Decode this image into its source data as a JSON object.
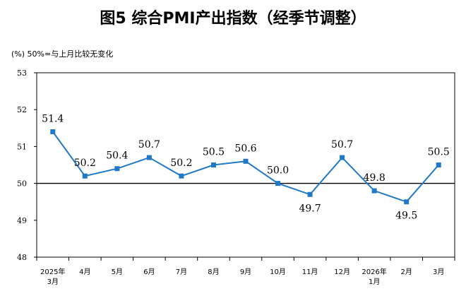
{
  "chart_data": {
    "type": "line",
    "title": "图5  综合PMI产出指数（经季节调整）",
    "unit_note": "(%)  50%=与上月比较无变化",
    "categories": [
      "2025年3月",
      "4月",
      "5月",
      "6月",
      "7月",
      "8月",
      "9月",
      "10月",
      "11月",
      "12月",
      "2026年1月",
      "2月",
      "3月"
    ],
    "series": [
      {
        "values": [
          51.4,
          50.2,
          50.4,
          50.7,
          50.2,
          50.5,
          50.6,
          50.0,
          49.7,
          50.7,
          49.8,
          49.5,
          50.5
        ]
      }
    ],
    "data_labels": [
      "51.4",
      "50.2",
      "50.4",
      "50.7",
      "50.2",
      "50.5",
      "50.6",
      "50.0",
      "49.7",
      "50.7",
      "49.8",
      "49.5",
      "50.5"
    ],
    "ylim": [
      48,
      53
    ],
    "yticks": [
      "53",
      "52",
      "51",
      "50",
      "49",
      "48"
    ],
    "reference_line": 50,
    "colors": {
      "series": "#1f78c8",
      "axis": "#000000",
      "reference": "#000000"
    }
  }
}
